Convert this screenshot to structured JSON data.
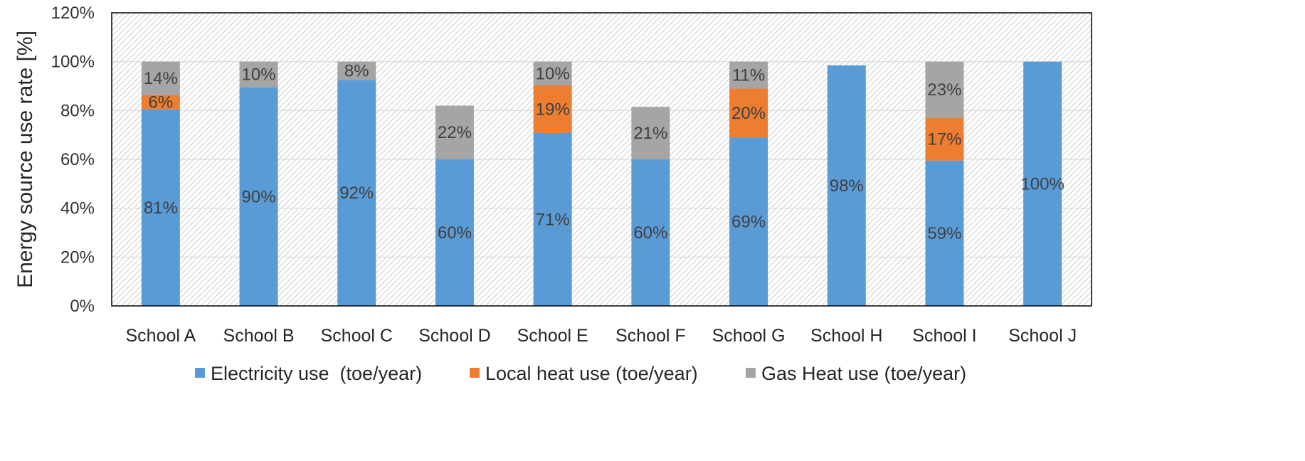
{
  "chart_data": {
    "type": "bar",
    "stacked": true,
    "categories": [
      "School A",
      "School B",
      "School C",
      "School D",
      "School E",
      "School F",
      "School G",
      "School H",
      "School I",
      "School J"
    ],
    "series": [
      {
        "name": "Electricity use  (toe/year)",
        "color": "#5B9BD5",
        "values": [
          80.5,
          89.5,
          92.5,
          60,
          70.8,
          60,
          69,
          98.5,
          59.5,
          100
        ],
        "labels": [
          "81%",
          "90%",
          "92%",
          "60%",
          "71%",
          "60%",
          "69%",
          "98%",
          "59%",
          "100%"
        ]
      },
      {
        "name": "Local heat use (toe/year)",
        "color": "#ED7D31",
        "values": [
          5.8,
          0,
          0,
          0,
          19.5,
          0,
          20,
          0,
          17.5,
          0
        ],
        "labels": [
          "6%",
          "",
          "",
          "",
          "19%",
          "",
          "20%",
          "",
          "17%",
          ""
        ]
      },
      {
        "name": "Gas Heat use (toe/year)",
        "color": "#A5A5A5",
        "values": [
          13.7,
          10.5,
          7.5,
          22,
          9.7,
          21.5,
          11,
          0,
          23,
          0
        ],
        "labels": [
          "14%",
          "10%",
          "8%",
          "22%",
          "10%",
          "21%",
          "11%",
          "",
          "23%",
          ""
        ]
      }
    ],
    "title": "",
    "xlabel": "",
    "ylabel": "Energy source use rate [%]",
    "ylim": [
      0,
      120
    ],
    "yticks": [
      0,
      20,
      40,
      60,
      80,
      100,
      120
    ],
    "ytick_labels": [
      "0%",
      "20%",
      "40%",
      "60%",
      "80%",
      "100%",
      "120%"
    ],
    "grid": true,
    "legend": "bottom"
  }
}
